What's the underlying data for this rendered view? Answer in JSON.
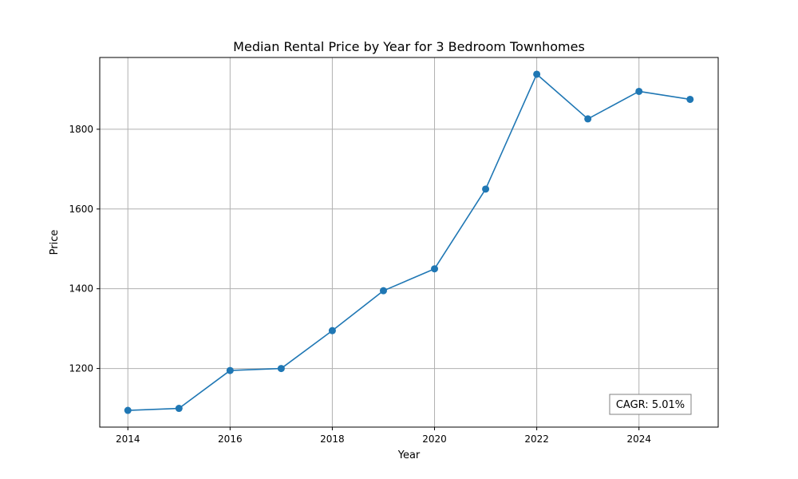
{
  "chart_data": {
    "type": "line",
    "title": "Median Rental Price by Year for 3 Bedroom Townhomes",
    "xlabel": "Year",
    "ylabel": "Price",
    "x": [
      2014,
      2015,
      2016,
      2017,
      2018,
      2019,
      2020,
      2021,
      2022,
      2023,
      2024,
      2025
    ],
    "series": [
      {
        "values": [
          1095,
          1100,
          1195,
          1200,
          1295,
          1395,
          1450,
          1650,
          1938,
          1826,
          1895,
          1875
        ],
        "color": "#1f77b4",
        "marker": "circle"
      }
    ],
    "xlim": [
      2013.45,
      2025.55
    ],
    "ylim": [
      1053,
      1980
    ],
    "xticks": [
      2014,
      2016,
      2018,
      2020,
      2022,
      2024
    ],
    "xtick_labels": [
      "2014",
      "2016",
      "2018",
      "2020",
      "2022",
      "2024"
    ],
    "yticks": [
      1200,
      1400,
      1600,
      1800
    ],
    "ytick_labels": [
      "1200",
      "1400",
      "1600",
      "1800"
    ],
    "grid": true,
    "annotation": "CAGR: 5.01%",
    "annotation_placement": "bottom-right"
  }
}
